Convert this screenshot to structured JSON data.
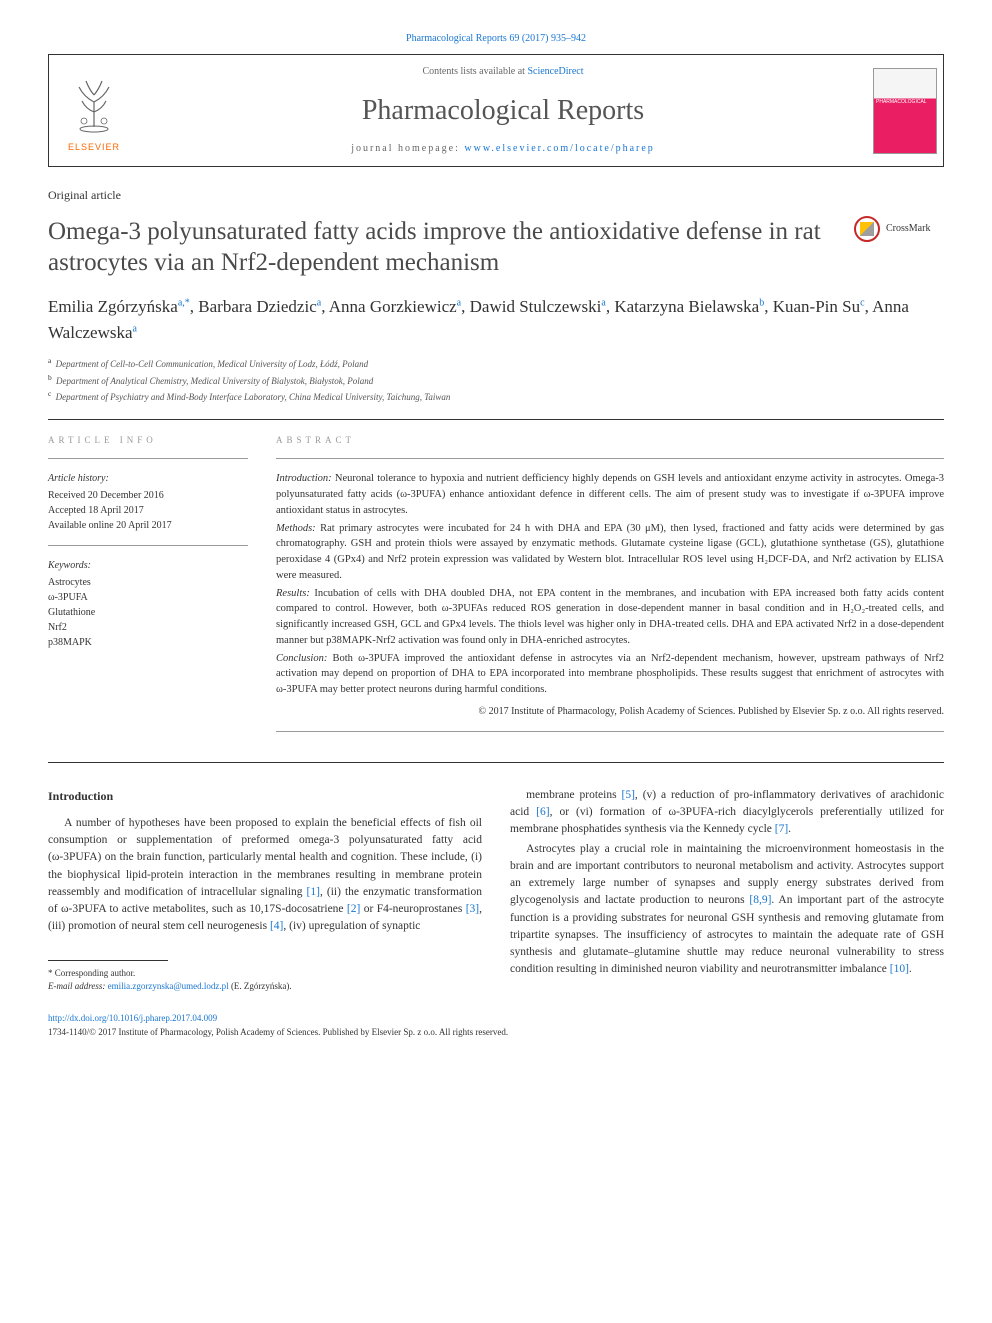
{
  "top_link": "Pharmacological Reports 69 (2017) 935–942",
  "header": {
    "contents_prefix": "Contents lists available at ",
    "contents_link": "ScienceDirect",
    "journal_name": "Pharmacological Reports",
    "homepage_prefix": "journal homepage: ",
    "homepage_url": "www.elsevier.com/locate/pharep",
    "elsevier": "ELSEVIER",
    "cover_label": "PHARMACOLOGICAL"
  },
  "article_type": "Original article",
  "title": "Omega-3 polyunsaturated fatty acids improve the antioxidative defense in rat astrocytes via an Nrf2-dependent mechanism",
  "crossmark": "CrossMark",
  "authors_html": "Emilia Zgórzyńska<sup>a,*</sup>, Barbara Dziedzic<sup>a</sup>, Anna Gorzkiewicz<sup>a</sup>, Dawid Stulczewski<sup>a</sup>, Katarzyna Bielawska<sup>b</sup>, Kuan-Pin Su<sup>c</sup>, Anna Walczewska<sup>a</sup>",
  "affiliations": [
    {
      "sup": "a",
      "text": "Department of Cell-to-Cell Communication, Medical University of Lodz, Łódź, Poland"
    },
    {
      "sup": "b",
      "text": "Department of Analytical Chemistry, Medical University of Bialystok, Białystok, Poland"
    },
    {
      "sup": "c",
      "text": "Department of Psychiatry and Mind-Body Interface Laboratory, China Medical University, Taichung, Taiwan"
    }
  ],
  "info": {
    "heading": "ARTICLE INFO",
    "history_head": "Article history:",
    "history": [
      "Received 20 December 2016",
      "Accepted 18 April 2017",
      "Available online 20 April 2017"
    ],
    "keywords_head": "Keywords:",
    "keywords": [
      "Astrocytes",
      "ω-3PUFA",
      "Glutathione",
      "Nrf2",
      "p38MAPK"
    ]
  },
  "abstract": {
    "heading": "ABSTRACT",
    "paragraphs": [
      {
        "label": "Introduction:",
        "text": "Neuronal tolerance to hypoxia and nutrient defficiency highly depends on GSH levels and antioxidant enzyme activity in astrocytes. Omega-3 polyunsaturated fatty acids (ω-3PUFA) enhance antioxidant defence in different cells. The aim of present study was to investigate if ω-3PUFA improve antioxidant status in astrocytes."
      },
      {
        "label": "Methods:",
        "text": "Rat primary astrocytes were incubated for 24 h with DHA and EPA (30 μM), then lysed, fractioned and fatty acids were determined by gas chromatography. GSH and protein thiols were assayed by enzymatic methods. Glutamate cysteine ligase (GCL), glutathione synthetase (GS), glutathione peroxidase 4 (GPx4) and Nrf2 protein expression was validated by Western blot. Intracellular ROS level using H₂DCF-DA, and Nrf2 activation by ELISA were measured."
      },
      {
        "label": "Results:",
        "text": "Incubation of cells with DHA doubled DHA, not EPA content in the membranes, and incubation with EPA increased both fatty acids content compared to control. However, both ω-3PUFAs reduced ROS generation in dose-dependent manner in basal condition and in H₂O₂-treated cells, and significantly increased GSH, GCL and GPx4 levels. The thiols level was higher only in DHA-treated cells. DHA and EPA activated Nrf2 in a dose-dependent manner but p38MAPK-Nrf2 activation was found only in DHA-enriched astrocytes."
      },
      {
        "label": "Conclusion:",
        "text": "Both ω-3PUFA improved the antioxidant defense in astrocytes via an Nrf2-dependent mechanism, however, upstream pathways of Nrf2 activation may depend on proportion of DHA to EPA incorporated into membrane phospholipids. These results suggest that enrichment of astrocytes with ω-3PUFA may better protect neurons during harmful conditions."
      }
    ],
    "copyright": "© 2017 Institute of Pharmacology, Polish Academy of Sciences. Published by Elsevier Sp. z o.o. All rights reserved."
  },
  "body": {
    "section_head": "Introduction",
    "col1_paras": [
      "A number of hypotheses have been proposed to explain the beneficial effects of fish oil consumption or supplementation of preformed omega-3 polyunsaturated fatty acid (ω-3PUFA) on the brain function, particularly mental health and cognition. These include, (i) the biophysical lipid-protein interaction in the membranes resulting in membrane protein reassembly and modification of intracellular signaling <span class='ref-link'>[1]</span>, (ii) the enzymatic transformation of ω-3PUFA to active metabolites, such as 10,17S-docosatriene <span class='ref-link'>[2]</span> or F4-neuroprostanes <span class='ref-link'>[3]</span>, (iii) promotion of neural stem cell neurogenesis <span class='ref-link'>[4]</span>, (iv) upregulation of synaptic"
    ],
    "col2_paras": [
      "membrane proteins <span class='ref-link'>[5]</span>, (v) a reduction of pro-inflammatory derivatives of arachidonic acid <span class='ref-link'>[6]</span>, or (vi) formation of ω-3PUFA-rich diacylglycerols preferentially utilized for membrane phosphatides synthesis via the Kennedy cycle <span class='ref-link'>[7]</span>.",
      "Astrocytes play a crucial role in maintaining the microenvironment homeostasis in the brain and are important contributors to neuronal metabolism and activity. Astrocytes support an extremely large number of synapses and supply energy substrates derived from glycogenolysis and lactate production to neurons <span class='ref-link'>[8,9]</span>. An important part of the astrocyte function is a providing substrates for neuronal GSH synthesis and removing glutamate from tripartite synapses. The insufficiency of astrocytes to maintain the adequate rate of GSH synthesis and glutamate–glutamine shuttle may reduce neuronal vulnerability to stress condition resulting in diminished neuron viability and neurotransmitter imbalance <span class='ref-link'>[10]</span>."
    ]
  },
  "footnote": {
    "corr": "* Corresponding author.",
    "email_label": "E-mail address: ",
    "email": "emilia.zgorzynska@umed.lodz.pl",
    "email_author": " (E. Zgórzyńska)."
  },
  "doi": "http://dx.doi.org/10.1016/j.pharep.2017.04.009",
  "bottom_copy": "1734-1140/© 2017 Institute of Pharmacology, Polish Academy of Sciences. Published by Elsevier Sp. z o.o. All rights reserved.",
  "colors": {
    "link": "#1976d2",
    "elsevier_orange": "#ff6600",
    "crossmark_ring": "#c62828"
  }
}
